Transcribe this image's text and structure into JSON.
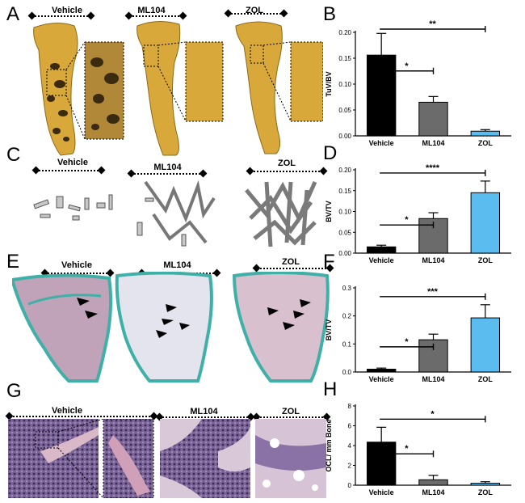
{
  "panels": {
    "A": {
      "letter": "A",
      "conditions": [
        "Vehicle",
        "ML104",
        "ZOL"
      ]
    },
    "B": {
      "letter": "B"
    },
    "C": {
      "letter": "C",
      "conditions": [
        "Vehicle",
        "ML104",
        "ZOL"
      ]
    },
    "D": {
      "letter": "D"
    },
    "E": {
      "letter": "E",
      "conditions": [
        "Vehicle",
        "ML104",
        "ZOL"
      ]
    },
    "F": {
      "letter": "F"
    },
    "G": {
      "letter": "G",
      "conditions": [
        "Vehicle",
        "ML104",
        "ZOL"
      ]
    },
    "H": {
      "letter": "H"
    }
  },
  "colors": {
    "vehicle": "#000000",
    "ml104": "#6b6b6b",
    "zol": "#5bbcf0",
    "bone_gold": "#d9a83a",
    "stain_teal": "#3fb0a8",
    "he_purple": "#8a6aa0"
  },
  "chart_data": [
    {
      "id": "B",
      "type": "bar",
      "categories": [
        "Vehicle",
        "ML104",
        "ZOL"
      ],
      "values": [
        0.156,
        0.065,
        0.009
      ],
      "errors": [
        0.042,
        0.011,
        0.003
      ],
      "ylabel": "TuV/BV",
      "ylim": [
        0,
        0.2
      ],
      "yticks": [
        "0.00",
        "0.05",
        "0.10",
        "0.15",
        "0.20"
      ],
      "significance": [
        {
          "from": 0,
          "to": 1,
          "label": "*"
        },
        {
          "from": 0,
          "to": 2,
          "label": "**"
        }
      ]
    },
    {
      "id": "D",
      "type": "bar",
      "categories": [
        "Vehicle",
        "ML104",
        "ZOL"
      ],
      "values": [
        0.015,
        0.083,
        0.145
      ],
      "errors": [
        0.004,
        0.014,
        0.028
      ],
      "ylabel": "BV/TV",
      "ylim": [
        0,
        0.2
      ],
      "yticks": [
        "0.00",
        "0.05",
        "0.10",
        "0.15",
        "0.20"
      ],
      "significance": [
        {
          "from": 0,
          "to": 1,
          "label": "*"
        },
        {
          "from": 0,
          "to": 2,
          "label": "****"
        }
      ]
    },
    {
      "id": "F",
      "type": "bar",
      "categories": [
        "Vehicle",
        "ML104",
        "ZOL"
      ],
      "values": [
        0.01,
        0.115,
        0.193
      ],
      "errors": [
        0.004,
        0.02,
        0.047
      ],
      "ylabel": "BV/TV",
      "ylim": [
        0,
        0.3
      ],
      "yticks": [
        "0.0",
        "0.1",
        "0.2",
        "0.3"
      ],
      "significance": [
        {
          "from": 0,
          "to": 1,
          "label": "*"
        },
        {
          "from": 0,
          "to": 2,
          "label": "***"
        }
      ]
    },
    {
      "id": "H",
      "type": "bar",
      "categories": [
        "Vehicle",
        "ML104",
        "ZOL"
      ],
      "values": [
        4.35,
        0.55,
        0.2
      ],
      "errors": [
        1.5,
        0.45,
        0.15
      ],
      "ylabel": "OCL/ mm Bone",
      "ylim": [
        0,
        8
      ],
      "yticks": [
        "0",
        "2",
        "4",
        "6",
        "8"
      ],
      "significance": [
        {
          "from": 0,
          "to": 1,
          "label": "*"
        },
        {
          "from": 0,
          "to": 2,
          "label": "*"
        }
      ]
    }
  ]
}
